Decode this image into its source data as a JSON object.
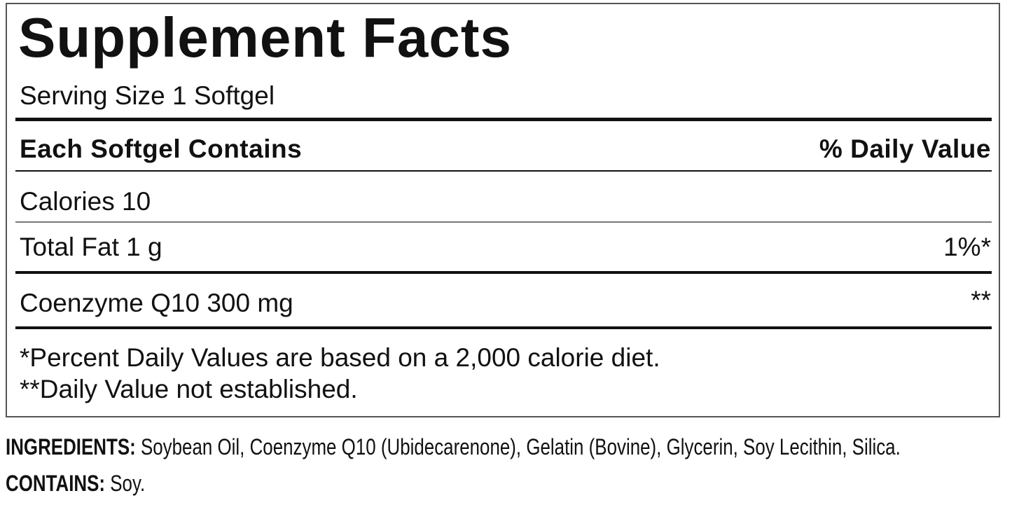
{
  "label": {
    "title": "Supplement Facts",
    "serving_size": "Serving Size 1 Softgel",
    "header_left": "Each Softgel Contains",
    "header_right": "% Daily Value",
    "rows": [
      {
        "name": "Calories 10",
        "dv": ""
      },
      {
        "name": "Total Fat 1 g",
        "dv": "1%*"
      },
      {
        "name": "Coenzyme Q10 300 mg",
        "dv": "**"
      }
    ],
    "footnotes": [
      "*Percent Daily Values are based on a 2,000 calorie diet.",
      "**Daily Value not established."
    ]
  },
  "ingredients": {
    "label": "INGREDIENTS:",
    "text": " Soybean Oil, Coenzyme Q10 (Ubidecarenone), Gelatin (Bovine), Glycerin, Soy Lecithin, Silica."
  },
  "contains": {
    "label": "CONTAINS:",
    "text": " Soy."
  }
}
